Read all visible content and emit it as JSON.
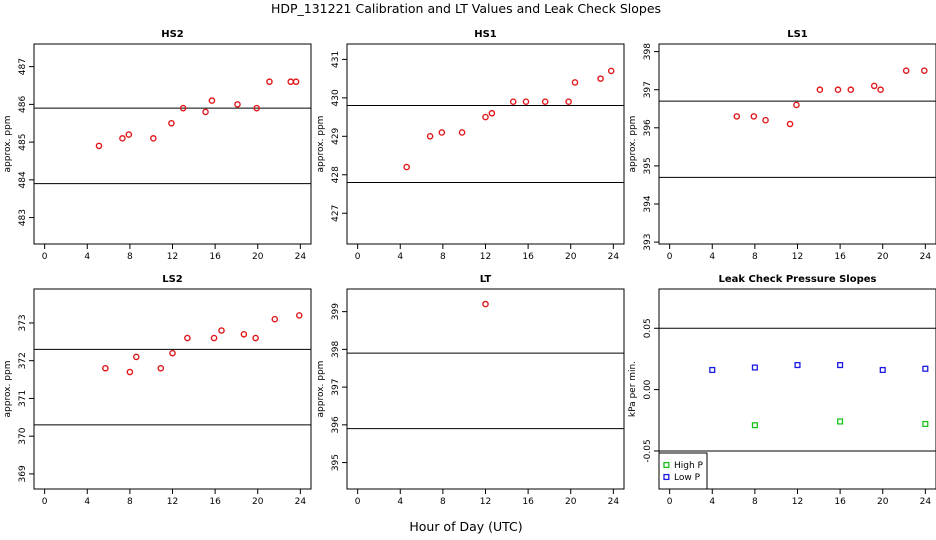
{
  "chart_data": {
    "title": "HDP_131221  Calibration and LT Values and Leak Check Slopes",
    "xlabel": "Hour of Day (UTC)",
    "panels": [
      {
        "title": "HS2",
        "type": "scatter",
        "ylabel": "approx. ppm",
        "xlim": [
          -1,
          25
        ],
        "ylim": [
          482.3,
          487.6
        ],
        "xticks": [
          0,
          4,
          8,
          12,
          16,
          20,
          24
        ],
        "yticks": [
          483,
          484,
          485,
          486,
          487
        ],
        "hlines": [
          485.9,
          483.9
        ],
        "series": [
          {
            "color": "#e0181d",
            "marker": "circle",
            "x": [
              5.1,
              7.3,
              7.9,
              10.2,
              11.9,
              13.0,
              15.1,
              15.7,
              18.1,
              19.9,
              21.1,
              23.1,
              23.6
            ],
            "y": [
              484.9,
              485.1,
              485.2,
              485.1,
              485.5,
              485.9,
              485.8,
              486.1,
              486.0,
              485.9,
              486.6,
              486.6,
              486.6
            ]
          }
        ]
      },
      {
        "title": "HS1",
        "type": "scatter",
        "ylabel": "approx. ppm",
        "xlim": [
          -1,
          25
        ],
        "ylim": [
          426.2,
          431.4
        ],
        "xticks": [
          0,
          4,
          8,
          12,
          16,
          20,
          24
        ],
        "yticks": [
          427,
          428,
          429,
          430,
          431
        ],
        "hlines": [
          429.8,
          427.8
        ],
        "series": [
          {
            "color": "#e0181d",
            "marker": "circle",
            "x": [
              4.6,
              6.8,
              7.9,
              9.8,
              12.0,
              12.6,
              14.6,
              15.8,
              17.6,
              19.8,
              20.4,
              22.8,
              23.8
            ],
            "y": [
              428.2,
              429.0,
              429.1,
              429.1,
              429.5,
              429.6,
              429.9,
              429.9,
              429.9,
              429.9,
              430.4,
              430.5,
              430.7
            ]
          }
        ]
      },
      {
        "title": "LS1",
        "type": "scatter",
        "ylabel": "approx. ppm",
        "xlim": [
          -1,
          25
        ],
        "ylim": [
          392.95,
          398.2
        ],
        "xticks": [
          0,
          4,
          8,
          12,
          16,
          20,
          24
        ],
        "yticks": [
          393,
          394,
          395,
          396,
          397,
          398
        ],
        "hlines": [
          396.7,
          394.7
        ],
        "series": [
          {
            "color": "#e0181d",
            "marker": "circle",
            "x": [
              6.3,
              7.9,
              9.0,
              11.3,
              11.9,
              14.1,
              15.8,
              17.0,
              19.2,
              19.8,
              22.2,
              23.9
            ],
            "y": [
              396.3,
              396.3,
              396.2,
              396.1,
              396.6,
              397.0,
              397.0,
              397.0,
              397.1,
              397.0,
              397.5,
              397.5
            ]
          }
        ]
      },
      {
        "title": "LS2",
        "type": "scatter",
        "ylabel": "approx. ppm",
        "xlim": [
          -1,
          25
        ],
        "ylim": [
          368.6,
          373.9
        ],
        "xticks": [
          0,
          4,
          8,
          12,
          16,
          20,
          24
        ],
        "yticks": [
          369,
          370,
          371,
          372,
          373
        ],
        "hlines": [
          372.3,
          370.3
        ],
        "series": [
          {
            "color": "#e0181d",
            "marker": "circle",
            "x": [
              5.7,
              8.0,
              8.6,
              10.9,
              12.0,
              13.4,
              15.9,
              16.6,
              18.7,
              19.8,
              21.6,
              23.9
            ],
            "y": [
              371.8,
              371.7,
              372.1,
              371.8,
              372.2,
              372.6,
              372.6,
              372.8,
              372.7,
              372.6,
              373.1,
              373.2
            ]
          }
        ]
      },
      {
        "title": "LT",
        "type": "scatter",
        "ylabel": "approx. ppm",
        "xlim": [
          -1,
          25
        ],
        "ylim": [
          394.3,
          399.6
        ],
        "xticks": [
          0,
          4,
          8,
          12,
          16,
          20,
          24
        ],
        "yticks": [
          395,
          396,
          397,
          398,
          399
        ],
        "hlines": [
          397.9,
          395.9
        ],
        "series": [
          {
            "color": "#e0181d",
            "marker": "circle",
            "x": [
              12.0
            ],
            "y": [
              399.2
            ]
          }
        ]
      },
      {
        "title": "Leak Check Pressure Slopes",
        "type": "scatter",
        "ylabel": "kPa per min.",
        "xlim": [
          -1,
          25
        ],
        "ylim": [
          -0.081,
          0.082
        ],
        "xticks": [
          0,
          4,
          8,
          12,
          16,
          20,
          24
        ],
        "yticks": [
          -0.05,
          0.0,
          0.05
        ],
        "ytick_labels": [
          "-0.05",
          "0.00",
          "0.05"
        ],
        "hlines": [
          0.05,
          -0.05
        ],
        "legend": {
          "position": "bottom-left",
          "entries": [
            "High P",
            "Low P"
          ]
        },
        "series": [
          {
            "name": "High P",
            "color": "#19c219",
            "marker": "square",
            "x": [
              8.0,
              16.0,
              24.0
            ],
            "y": [
              -0.029,
              -0.026,
              -0.028
            ]
          },
          {
            "name": "Low P",
            "color": "#1a1ae0",
            "marker": "square",
            "x": [
              4.0,
              8.0,
              12.0,
              16.0,
              20.0,
              24.0
            ],
            "y": [
              0.016,
              0.018,
              0.02,
              0.02,
              0.016,
              0.017
            ]
          }
        ]
      }
    ]
  }
}
